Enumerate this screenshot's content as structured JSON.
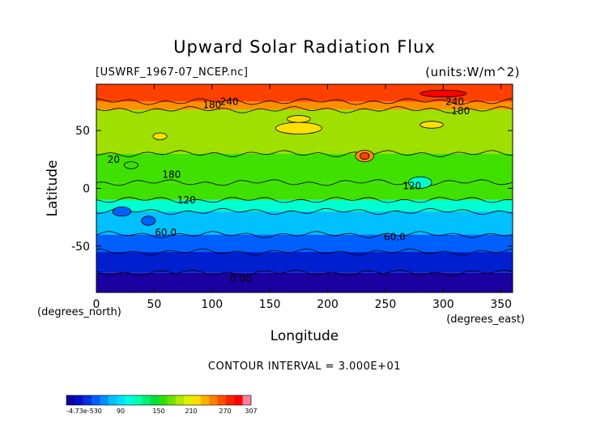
{
  "title": "Upward Solar Radiation Flux",
  "subtitle_left": "[USWRF_1967-07_NCEP.nc]",
  "subtitle_right": "(units:W/m^2)",
  "contour_interval": "CONTOUR INTERVAL = 3.000E+01",
  "colors": {
    "levels": [
      "#1a00a0",
      "#0020d0",
      "#0060ff",
      "#00c0ff",
      "#00ffd0",
      "#00e070",
      "#40e000",
      "#a0e000",
      "#ffe000",
      "#ff9000",
      "#ff4000",
      "#ff0000"
    ]
  },
  "chart_data": {
    "type": "contour",
    "title": "Upward Solar Radiation Flux",
    "xlabel": "Longitude",
    "ylabel": "Latitude",
    "x_unit_label": "(degrees_east)",
    "y_unit_label": "(degrees_north)",
    "xlim": [
      0,
      360
    ],
    "ylim": [
      -90,
      90
    ],
    "x_ticks": [
      0,
      50,
      100,
      150,
      200,
      250,
      300,
      350
    ],
    "y_ticks": [
      50,
      0,
      -50
    ],
    "contour_labels": [
      {
        "text": "240",
        "x": 115,
        "y": 75
      },
      {
        "text": "180",
        "x": 100,
        "y": 72
      },
      {
        "text": "240",
        "x": 310,
        "y": 75
      },
      {
        "text": "180",
        "x": 315,
        "y": 67
      },
      {
        "text": "180",
        "x": 65,
        "y": 12
      },
      {
        "text": "120",
        "x": 78,
        "y": -10
      },
      {
        "text": "120",
        "x": 273,
        "y": 2
      },
      {
        "text": "60.0",
        "x": 60,
        "y": -38
      },
      {
        "text": "60.0",
        "x": 258,
        "y": -42
      },
      {
        "text": "0.00",
        "x": 125,
        "y": -78
      },
      {
        "text": "20",
        "x": 15,
        "y": 25
      }
    ],
    "bands": [
      {
        "lat_min": 75,
        "lat_max": 90,
        "value": 270
      },
      {
        "lat_min": 68,
        "lat_max": 75,
        "value": 240
      },
      {
        "lat_min": 30,
        "lat_max": 68,
        "value": 180
      },
      {
        "lat_min": 5,
        "lat_max": 30,
        "value": 170
      },
      {
        "lat_min": -10,
        "lat_max": 5,
        "value": 150
      },
      {
        "lat_min": -20,
        "lat_max": -10,
        "value": 120
      },
      {
        "lat_min": -40,
        "lat_max": -20,
        "value": 90
      },
      {
        "lat_min": -55,
        "lat_max": -40,
        "value": 60
      },
      {
        "lat_min": -73,
        "lat_max": -55,
        "value": 30
      },
      {
        "lat_min": -90,
        "lat_max": -73,
        "value": 0
      }
    ],
    "colorbar": {
      "tick_labels": [
        "-4.73e-530",
        "90",
        "150",
        "210",
        "270",
        "307"
      ],
      "colors": [
        "#1000a0",
        "#0010c8",
        "#0030e0",
        "#0060ff",
        "#0090ff",
        "#00c0ff",
        "#00e0ff",
        "#00ffe0",
        "#00ffb0",
        "#00f070",
        "#00e040",
        "#30e000",
        "#70e000",
        "#b0e800",
        "#e0f000",
        "#ffe000",
        "#ffb000",
        "#ff8000",
        "#ff5000",
        "#ff2000",
        "#ff0000",
        "#ff80a0"
      ]
    }
  }
}
